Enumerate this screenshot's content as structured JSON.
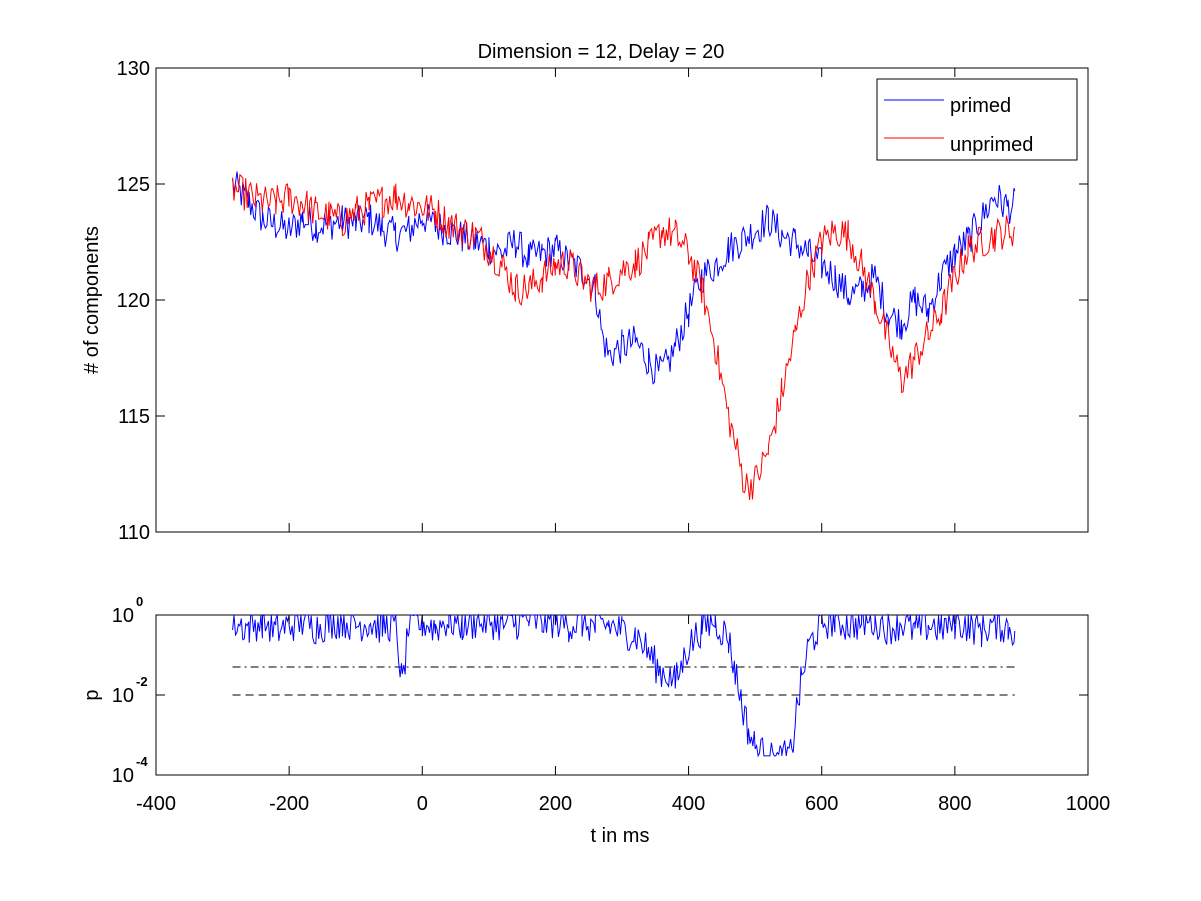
{
  "chart_data": [
    {
      "type": "line",
      "title": "Dimension  = 12, Delay = 20",
      "xlabel": "",
      "ylabel": "# of components",
      "xlim": [
        -400,
        1000
      ],
      "ylim": [
        110,
        130
      ],
      "yticks": [
        "110",
        "115",
        "120",
        "125",
        "130"
      ],
      "grid": false,
      "legend_position": "top-right",
      "series": [
        {
          "name": "primed",
          "color": "#0000ff",
          "x": [
            -285,
            -260,
            -240,
            -220,
            -200,
            -180,
            -160,
            -140,
            -120,
            -100,
            -80,
            -60,
            -40,
            -20,
            0,
            20,
            40,
            60,
            80,
            100,
            120,
            140,
            160,
            180,
            200,
            220,
            240,
            260,
            270,
            280,
            300,
            320,
            340,
            355,
            370,
            380,
            400,
            420,
            440,
            460,
            480,
            500,
            520,
            540,
            560,
            580,
            600,
            620,
            640,
            660,
            680,
            700,
            720,
            740,
            760,
            780,
            800,
            820,
            840,
            860,
            870,
            880,
            890
          ],
          "y": [
            125.0,
            124.2,
            123.5,
            123.2,
            123.0,
            123.5,
            123.2,
            123.3,
            123.4,
            123.3,
            123.5,
            123.1,
            122.8,
            123.0,
            123.6,
            123.2,
            123.0,
            122.7,
            122.5,
            122.3,
            122.0,
            122.5,
            121.8,
            122.0,
            122.2,
            121.6,
            121.3,
            120.5,
            118.5,
            117.6,
            118.0,
            118.2,
            117.4,
            116.8,
            117.3,
            118.0,
            119.5,
            121.0,
            121.5,
            122.2,
            122.6,
            123.0,
            123.5,
            122.8,
            122.5,
            122.0,
            121.5,
            121.0,
            120.2,
            120.4,
            121.0,
            119.4,
            119.0,
            120.0,
            119.5,
            121.0,
            122.0,
            122.6,
            123.5,
            124.5,
            124.2,
            124.0,
            124.1
          ]
        },
        {
          "name": "unprimed",
          "color": "#ff0000",
          "x": [
            -285,
            -260,
            -240,
            -220,
            -200,
            -180,
            -160,
            -140,
            -120,
            -100,
            -80,
            -60,
            -40,
            -20,
            0,
            20,
            40,
            60,
            80,
            100,
            120,
            140,
            160,
            180,
            200,
            220,
            240,
            260,
            280,
            300,
            320,
            340,
            360,
            380,
            400,
            420,
            440,
            460,
            475,
            485,
            500,
            520,
            540,
            560,
            580,
            600,
            620,
            640,
            660,
            680,
            700,
            720,
            740,
            760,
            780,
            800,
            820,
            840,
            860,
            880,
            890
          ],
          "y": [
            124.8,
            124.5,
            124.2,
            124.2,
            124.4,
            124.2,
            123.8,
            123.6,
            123.4,
            123.8,
            124.0,
            124.3,
            124.5,
            124.2,
            124.0,
            123.8,
            123.3,
            123.0,
            122.8,
            122.2,
            121.5,
            120.5,
            120.5,
            121.0,
            121.5,
            121.6,
            120.9,
            120.5,
            120.8,
            121.3,
            121.6,
            122.2,
            123.0,
            122.8,
            122.0,
            120.5,
            118.0,
            115.0,
            113.2,
            112.0,
            112.2,
            113.5,
            116.0,
            118.5,
            121.0,
            122.5,
            123.0,
            122.8,
            121.5,
            120.0,
            118.2,
            116.5,
            117.5,
            118.5,
            119.5,
            121.0,
            122.2,
            122.5,
            122.8,
            123.0,
            123.0
          ]
        }
      ]
    },
    {
      "type": "line",
      "xlabel": "t in ms",
      "ylabel": "p",
      "xlim": [
        -400,
        1000
      ],
      "xticks": [
        "-400",
        "-200",
        "0",
        "200",
        "400",
        "600",
        "800",
        "1000"
      ],
      "ylim": [
        0.0001,
        1
      ],
      "yscale": "log",
      "yticks": [
        {
          "base": "10",
          "exp": "0"
        },
        {
          "base": "10",
          "exp": "-2"
        },
        {
          "base": "10",
          "exp": "-4"
        }
      ],
      "grid": false,
      "series": [
        {
          "color": "#0000ff",
          "x": [
            -285,
            -260,
            -240,
            -220,
            -200,
            -180,
            -160,
            -140,
            -120,
            -100,
            -80,
            -60,
            -40,
            -30,
            -20,
            0,
            20,
            40,
            60,
            80,
            100,
            120,
            140,
            160,
            180,
            200,
            220,
            240,
            260,
            280,
            300,
            320,
            340,
            355,
            370,
            380,
            400,
            420,
            440,
            460,
            470,
            480,
            490,
            500,
            520,
            540,
            555,
            560,
            570,
            580,
            600,
            620,
            640,
            660,
            680,
            700,
            720,
            740,
            760,
            780,
            800,
            820,
            840,
            860,
            880,
            890
          ],
          "y": [
            0.8,
            0.6,
            0.9,
            0.5,
            0.7,
            0.8,
            0.6,
            0.8,
            0.9,
            0.7,
            0.8,
            0.6,
            0.8,
            0.02,
            0.7,
            0.8,
            0.6,
            0.9,
            0.7,
            0.8,
            0.9,
            0.7,
            0.8,
            0.9,
            0.8,
            0.9,
            0.7,
            0.8,
            0.6,
            0.7,
            0.5,
            0.4,
            0.15,
            0.05,
            0.04,
            0.025,
            0.2,
            0.6,
            0.9,
            0.3,
            0.05,
            0.008,
            0.0015,
            0.0006,
            0.0003,
            0.0003,
            0.0004,
            0.003,
            0.03,
            0.2,
            0.8,
            0.9,
            0.7,
            0.8,
            0.9,
            0.6,
            0.8,
            0.5,
            0.7,
            0.6,
            0.8,
            0.7,
            0.5,
            0.8,
            0.6,
            0.5
          ]
        }
      ],
      "reference_lines": [
        {
          "y": 0.05,
          "style": "dash-dot"
        },
        {
          "y": 0.01,
          "style": "dashed"
        }
      ]
    }
  ],
  "legend": {
    "primed": "primed",
    "unprimed": "unprimed"
  }
}
